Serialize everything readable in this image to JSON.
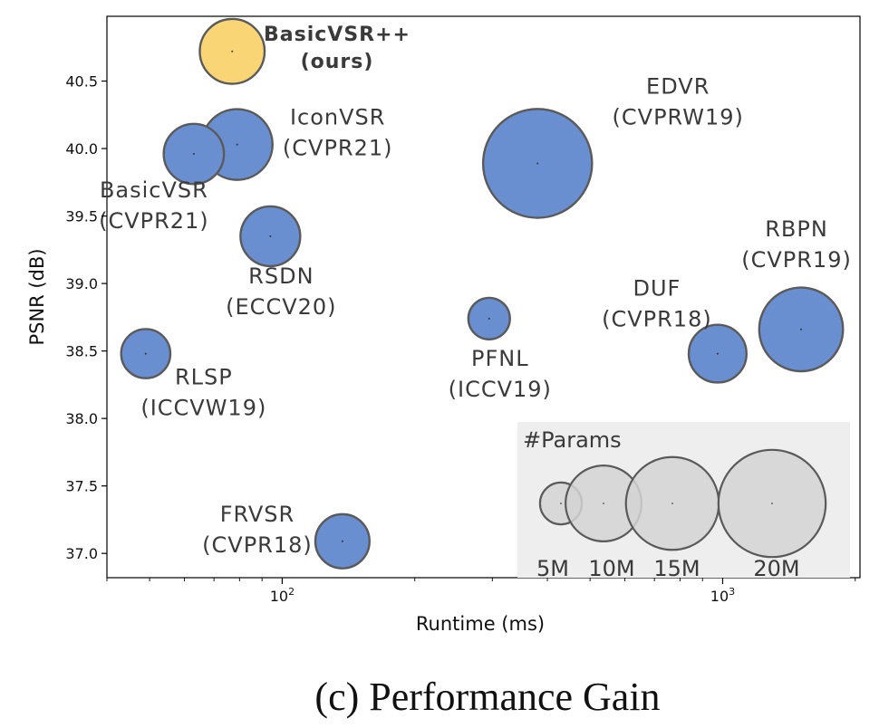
{
  "chart_data": {
    "type": "scatter",
    "xlabel": "Runtime (ms)",
    "ylabel": "PSNR (dB)",
    "xscale": "log",
    "xlim": [
      40,
      2050
    ],
    "ylim": [
      36.82,
      40.98
    ],
    "x_ticks": [
      {
        "value": 100,
        "base": "10",
        "exp": "2"
      },
      {
        "value": 1000,
        "base": "10",
        "exp": "3"
      }
    ],
    "y_ticks": [
      "37.0",
      "37.5",
      "38.0",
      "38.5",
      "39.0",
      "39.5",
      "40.0",
      "40.5"
    ],
    "colors": {
      "default": "#6a8fd0",
      "ours": "#f9d576",
      "edge": "#5a5a5a",
      "legend_fill": "#d3d3d3",
      "legend_bg": "#eeeeee"
    },
    "points": [
      {
        "name": "BasicVSR++",
        "venue": "(ours)",
        "x": 77,
        "y": 40.72,
        "params": 7.3,
        "color": "ours",
        "label_pos": "right",
        "bold": true
      },
      {
        "name": "IconVSR",
        "venue": "(CVPR21)",
        "x": 79,
        "y": 40.03,
        "params": 8.7,
        "color": "default",
        "label_pos": "right"
      },
      {
        "name": "BasicVSR",
        "venue": "(CVPR21)",
        "x": 63,
        "y": 39.96,
        "params": 6.3,
        "color": "default",
        "label_pos": "below-left"
      },
      {
        "name": "RSDN",
        "venue": "(ECCV20)",
        "x": 94,
        "y": 39.35,
        "params": 6.2,
        "color": "default",
        "label_pos": "below"
      },
      {
        "name": "RLSP",
        "venue": "(ICCVW19)",
        "x": 49,
        "y": 38.48,
        "params": 4.2,
        "color": "default",
        "label_pos": "below-right"
      },
      {
        "name": "FRVSR",
        "venue": "(CVPR18)",
        "x": 137,
        "y": 37.09,
        "params": 5.1,
        "color": "default",
        "label_pos": "left"
      },
      {
        "name": "PFNL",
        "venue": "(ICCV19)",
        "x": 295,
        "y": 38.74,
        "params": 3.0,
        "color": "default",
        "label_pos": "below"
      },
      {
        "name": "EDVR",
        "venue": "(CVPRW19)",
        "x": 380,
        "y": 39.89,
        "params": 20.6,
        "color": "default",
        "label_pos": "upper-right"
      },
      {
        "name": "DUF",
        "venue": "(CVPR18)",
        "x": 974,
        "y": 38.48,
        "params": 5.8,
        "color": "default",
        "label_pos": "above-left"
      },
      {
        "name": "RBPN",
        "venue": "(CVPR19)",
        "x": 1507,
        "y": 38.66,
        "params": 12.2,
        "color": "default",
        "label_pos": "above"
      }
    ],
    "legend": {
      "title": "#Params",
      "placement": "bottom-right",
      "sizes": [
        {
          "label": "5M",
          "params": 5
        },
        {
          "label": "10M",
          "params": 10
        },
        {
          "label": "15M",
          "params": 15
        },
        {
          "label": "20M",
          "params": 20
        }
      ]
    }
  },
  "caption": "(c) Performance Gain"
}
